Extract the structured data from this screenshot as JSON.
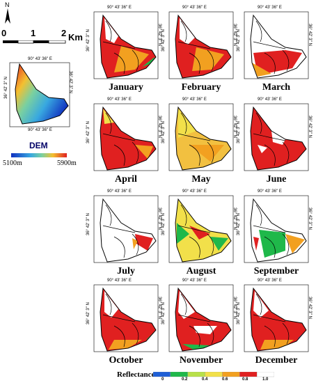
{
  "north_label": "N",
  "scalebar": {
    "ticks": [
      "0",
      "1",
      "2"
    ],
    "unit": "Km"
  },
  "dem": {
    "title": "DEM",
    "min_label": "5100m",
    "max_label": "5900m",
    "coord_top": "90° 43' 36'' E",
    "coord_side": "36° 42' 3'' N",
    "coord_bottom": "90° 43' 36'' E"
  },
  "coords": {
    "top": "90° 43' 36'' E",
    "side": "36° 42' 3'' N"
  },
  "months": [
    "January",
    "February",
    "March",
    "April",
    "May",
    "June",
    "July",
    "August",
    "September",
    "October",
    "November",
    "December"
  ],
  "legend": {
    "title": "Reflectance",
    "ticks": [
      "0",
      "0.2",
      "0.4",
      "0.6",
      "0.8",
      "1.0"
    ],
    "colors": [
      "#1f5fd6",
      "#1fb84a",
      "#b8e04a",
      "#f2e04a",
      "#f2a020",
      "#e02020",
      "#ffffff"
    ]
  }
}
